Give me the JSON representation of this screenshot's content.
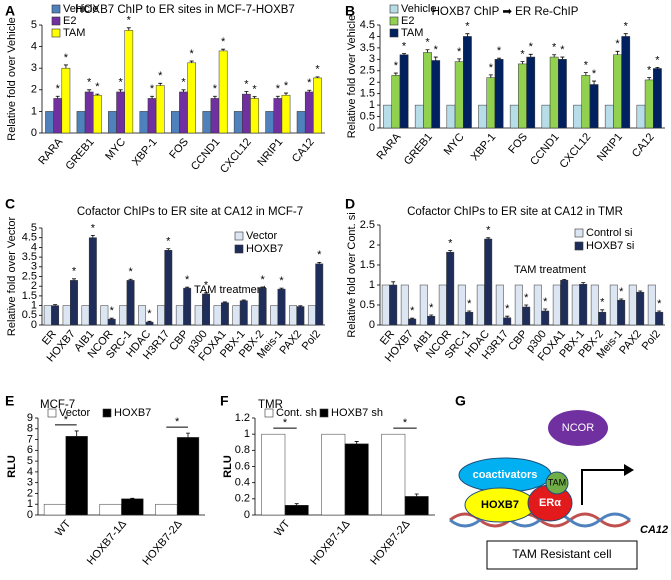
{
  "chart_data": [
    {
      "type": "bar",
      "panel_label": "A",
      "title": "HOXB7 ChIP to ER sites in MCF-7-HOXB7",
      "ylabel": "Relative fold over Vehicle",
      "categories": [
        "RARA",
        "GREB1",
        "MYC",
        "XBP-1",
        "FOS",
        "CCND1",
        "CXCL12",
        "NRIP1",
        "CA12"
      ],
      "series": [
        {
          "name": "Vehicle",
          "color": "#4f81bd",
          "values": [
            1,
            1,
            1,
            1,
            1,
            1,
            1,
            1,
            1
          ]
        },
        {
          "name": "E2",
          "color": "#7030a0",
          "values": [
            1.6,
            1.9,
            1.9,
            1.6,
            1.9,
            1.6,
            1.8,
            1.6,
            1.9
          ],
          "errors": [
            0.1,
            0.1,
            0.1,
            0.1,
            0.1,
            0.1,
            0.12,
            0.1,
            0.08
          ],
          "significant": [
            true,
            true,
            true,
            true,
            true,
            true,
            true,
            true,
            true
          ]
        },
        {
          "name": "TAM",
          "color": "#ffff00",
          "values": [
            3.0,
            1.75,
            4.75,
            2.2,
            3.25,
            3.8,
            1.6,
            1.75,
            2.55
          ],
          "errors": [
            0.15,
            0.05,
            0.12,
            0.1,
            0.08,
            0.08,
            0.08,
            0.1,
            0.05
          ],
          "significant": [
            true,
            true,
            true,
            true,
            true,
            true,
            true,
            true,
            true
          ]
        }
      ],
      "ylim": [
        0,
        5
      ],
      "yticks": [
        0,
        1,
        2,
        3,
        4,
        5
      ],
      "legend": "top-left",
      "sig_label": "*"
    },
    {
      "type": "bar",
      "panel_label": "B",
      "title": "HOXB7 ChIP ➡ ER Re-ChIP",
      "ylabel": "Relative fold over Vehicle",
      "categories": [
        "RARA",
        "GREB1",
        "MYC",
        "XBP-1",
        "FOS",
        "CCND1",
        "CXCL12",
        "NRIP1",
        "CA12"
      ],
      "series": [
        {
          "name": "Vehicle",
          "color": "#b7dee8",
          "values": [
            1,
            1,
            1,
            1,
            1,
            1,
            1,
            1,
            1
          ]
        },
        {
          "name": "E2",
          "color": "#92d050",
          "values": [
            2.3,
            3.3,
            2.9,
            2.2,
            2.8,
            3.1,
            2.3,
            3.2,
            2.1
          ],
          "errors": [
            0.1,
            0.12,
            0.12,
            0.12,
            0.1,
            0.1,
            0.12,
            0.15,
            0.1
          ],
          "significant": [
            true,
            true,
            true,
            true,
            true,
            true,
            true,
            true,
            true
          ]
        },
        {
          "name": "TAM",
          "color": "#002060",
          "values": [
            3.2,
            2.95,
            4.0,
            3.0,
            3.1,
            3.0,
            1.9,
            4.0,
            2.6
          ],
          "errors": [
            0.05,
            0.15,
            0.12,
            0.05,
            0.12,
            0.1,
            0.15,
            0.12,
            0.05
          ],
          "significant": [
            true,
            true,
            true,
            true,
            true,
            true,
            true,
            true,
            true
          ]
        }
      ],
      "ylim": [
        0,
        4.5
      ],
      "yticks": [
        0,
        0.5,
        1,
        1.5,
        2,
        2.5,
        3,
        3.5,
        4,
        4.5
      ],
      "legend": "top-left",
      "sig_label": "*"
    },
    {
      "type": "bar",
      "panel_label": "C",
      "title": "Cofactor ChIPs to ER site at CA12 in MCF-7",
      "ylabel": "Relative fold over Vector",
      "annotation": "TAM treatment",
      "categories": [
        "ER",
        "HOXB7",
        "AIB1",
        "NCOR",
        "SRC-1",
        "HDAC",
        "H3R17",
        "CBP",
        "p300",
        "FOXA1",
        "PBX-1",
        "PBX-2",
        "Meis-1",
        "PAX2",
        "Pol2"
      ],
      "series": [
        {
          "name": "Vector",
          "color": "#dce6f2",
          "values": [
            1,
            1,
            1,
            1,
            1,
            1,
            1,
            1,
            1,
            1,
            1,
            1,
            1,
            1,
            1
          ]
        },
        {
          "name": "HOXB7",
          "color": "#1f2d5a",
          "values": [
            1.0,
            2.3,
            4.5,
            0.3,
            2.3,
            0.15,
            3.85,
            1.9,
            1.6,
            1.15,
            1.25,
            1.9,
            1.85,
            0.95,
            3.15
          ],
          "errors": [
            0.05,
            0.08,
            0.12,
            0.05,
            0.06,
            0.04,
            0.08,
            0.05,
            0.06,
            0.04,
            0.04,
            0.06,
            0.05,
            0.04,
            0.08
          ],
          "significant": [
            false,
            true,
            true,
            true,
            true,
            true,
            true,
            true,
            true,
            false,
            false,
            true,
            true,
            false,
            true
          ]
        }
      ],
      "ylim": [
        0,
        5
      ],
      "yticks": [
        0,
        0.5,
        1,
        1.5,
        2,
        2.5,
        3,
        3.5,
        4,
        4.5,
        5
      ],
      "legend": "top-right",
      "sig_label": "*"
    },
    {
      "type": "bar",
      "panel_label": "D",
      "title": "Cofactor ChIPs to ER site at CA12 in TMR",
      "ylabel": "Relative fold over Cont. si",
      "annotation": "TAM treatment",
      "categories": [
        "ER",
        "HOXB7",
        "AIB1",
        "NCOR",
        "SRC-1",
        "HDAC",
        "H3R17",
        "CBP",
        "p300",
        "FOXA1",
        "PBX-1",
        "PBX-2",
        "Meis-1",
        "PAX2",
        "Pol2"
      ],
      "series": [
        {
          "name": "Control si",
          "color": "#dce6f2",
          "values": [
            1,
            1,
            1,
            1,
            1,
            1,
            1,
            1,
            1,
            1,
            1,
            1,
            1,
            1,
            1
          ]
        },
        {
          "name": "HOXB7 si",
          "color": "#1f2d5a",
          "values": [
            1.0,
            0.15,
            0.22,
            1.82,
            0.32,
            2.15,
            0.18,
            0.45,
            0.35,
            1.12,
            1.02,
            0.32,
            0.62,
            0.82,
            0.32
          ],
          "errors": [
            0.08,
            0.02,
            0.03,
            0.04,
            0.03,
            0.03,
            0.04,
            0.05,
            0.05,
            0.02,
            0.04,
            0.06,
            0.03,
            0.03,
            0.03
          ],
          "significant": [
            false,
            true,
            true,
            true,
            true,
            true,
            true,
            true,
            true,
            false,
            false,
            true,
            true,
            false,
            true
          ]
        }
      ],
      "ylim": [
        0,
        2.5
      ],
      "yticks": [
        0,
        0.5,
        1,
        1.5,
        2,
        2.5
      ],
      "legend": "top-right",
      "sig_label": "*"
    },
    {
      "type": "bar",
      "panel_label": "E",
      "title": "MCF-7",
      "ylabel": "RLU",
      "categories": [
        "WT",
        "HOXB7-1Δ",
        "HOXB7-2Δ"
      ],
      "series": [
        {
          "name": "Vector",
          "color": "#ffffff",
          "values": [
            1,
            1,
            1
          ]
        },
        {
          "name": "HOXB7",
          "color": "#000000",
          "values": [
            7.3,
            1.5,
            7.2
          ],
          "errors": [
            0.5,
            0.05,
            0.4
          ]
        }
      ],
      "category_significant": [
        true,
        false,
        true
      ],
      "ylim": [
        0,
        9
      ],
      "yticks": [
        0,
        1,
        2,
        3,
        4,
        5,
        6,
        7,
        8,
        9
      ],
      "legend": "top",
      "sig_label": "*"
    },
    {
      "type": "bar",
      "panel_label": "F",
      "title": "TMR",
      "ylabel": "RLU",
      "categories": [
        "WT",
        "HOXB7-1Δ",
        "HOXB7-2Δ"
      ],
      "series": [
        {
          "name": "Cont. sh",
          "color": "#ffffff",
          "values": [
            1,
            1,
            1
          ]
        },
        {
          "name": "HOXB7 sh",
          "color": "#000000",
          "values": [
            0.12,
            0.88,
            0.23
          ],
          "errors": [
            0.02,
            0.03,
            0.03
          ]
        }
      ],
      "category_significant": [
        true,
        false,
        true
      ],
      "ylim": [
        0,
        1.2
      ],
      "yticks": [
        0,
        0.2,
        0.4,
        0.6,
        0.8,
        1,
        1.2
      ],
      "legend": "top",
      "sig_label": "*"
    }
  ],
  "diagram": {
    "panel_label": "G",
    "nodes": [
      {
        "label": "NCOR"
      },
      {
        "label": "coactivators"
      },
      {
        "label": "TAM"
      },
      {
        "label": "HOXB7"
      },
      {
        "label": "ERα"
      }
    ],
    "gene": "CA12",
    "cell": "TAM Resistant cell"
  }
}
